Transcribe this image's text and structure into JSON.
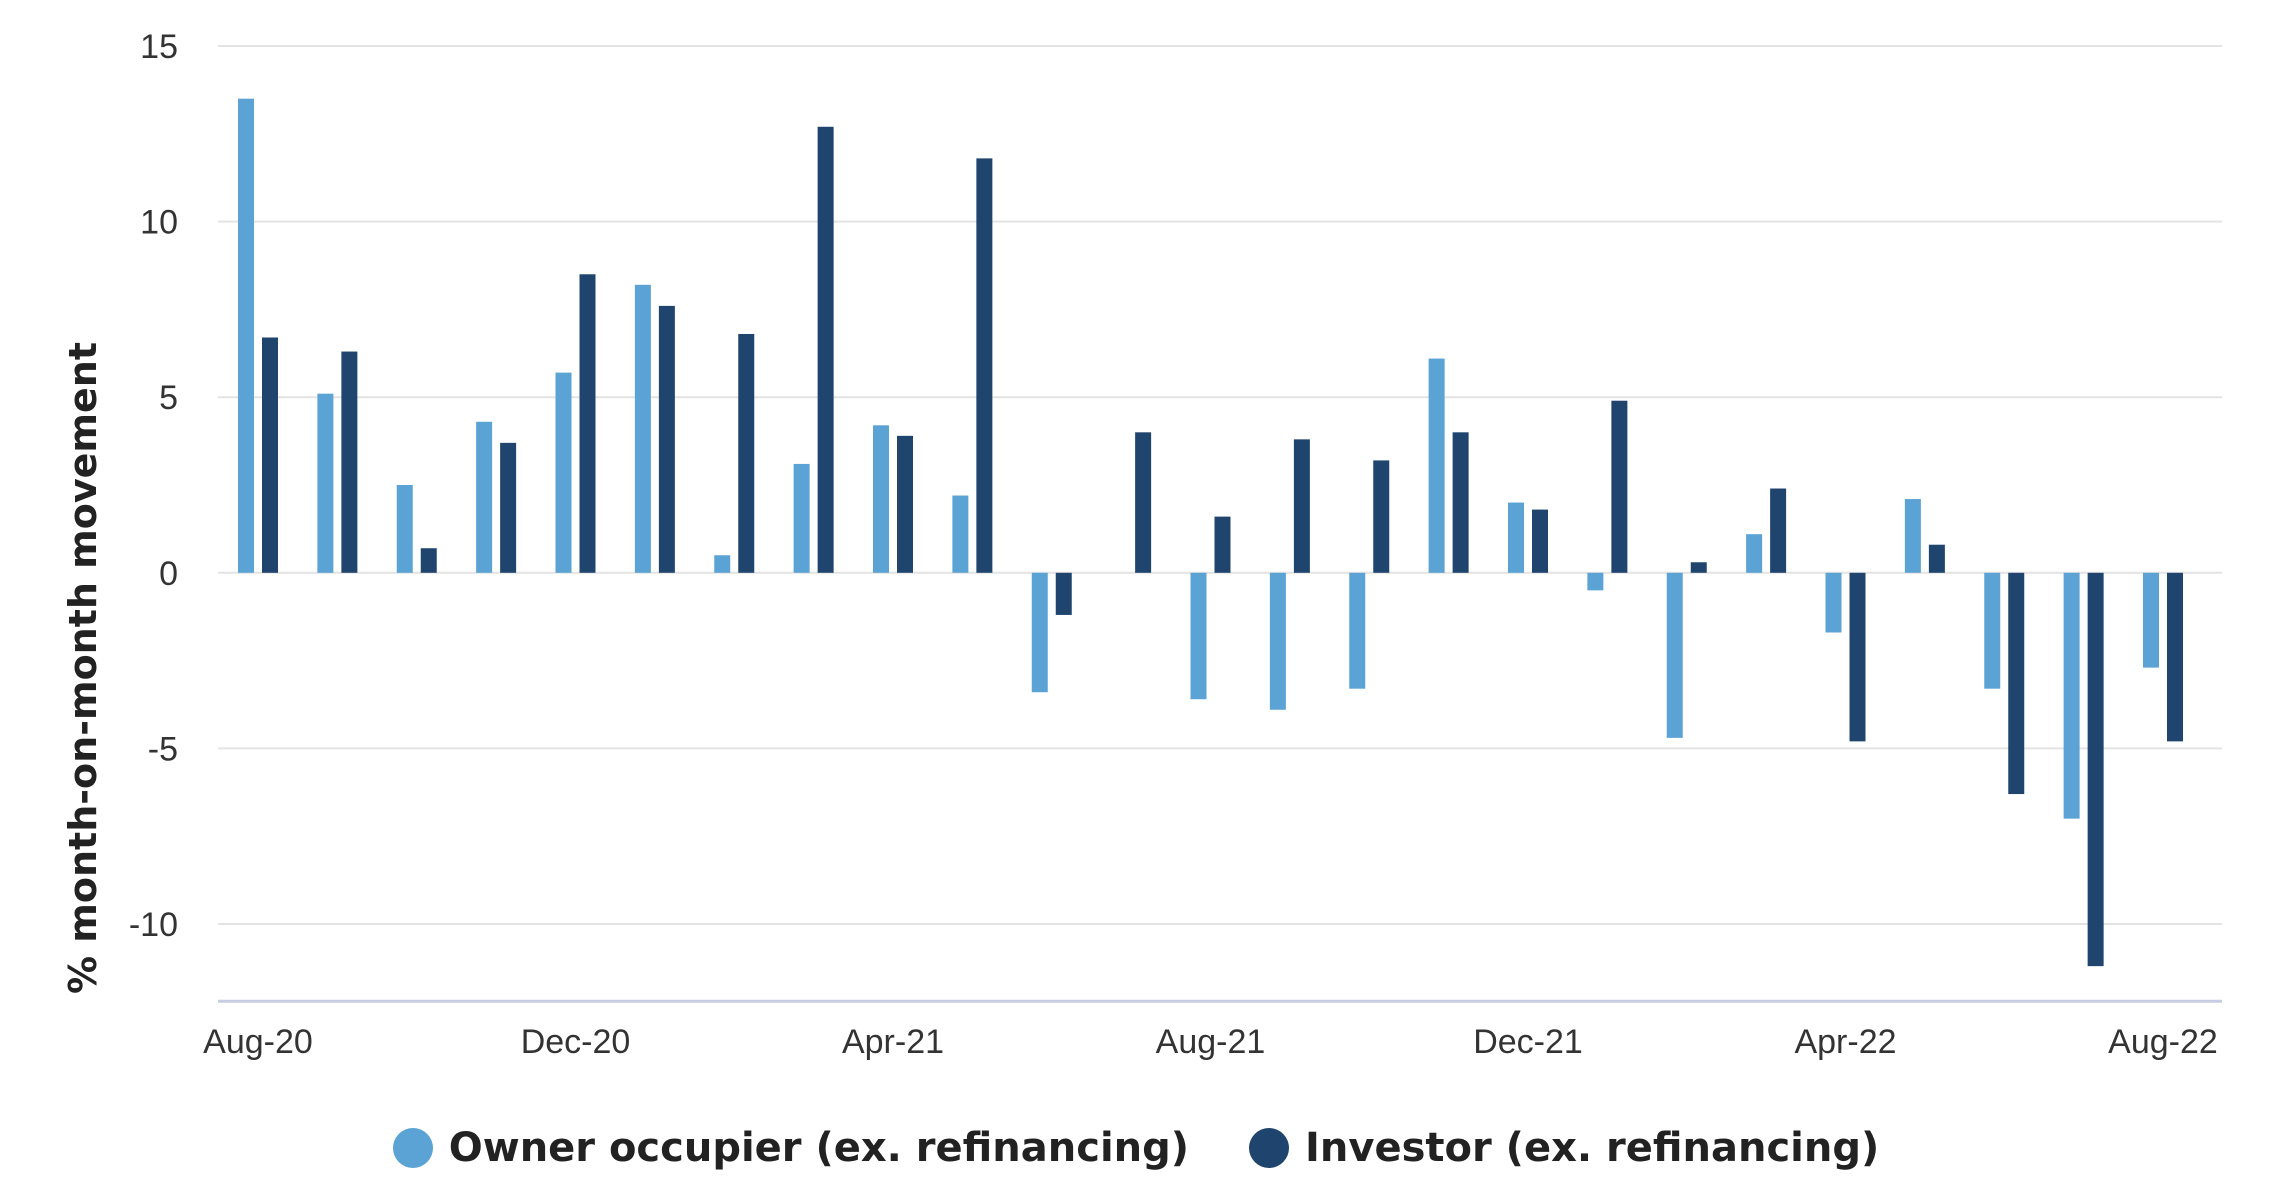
{
  "chart_data": {
    "type": "bar",
    "ylabel": "% month-on-month movement",
    "ylim": [
      -12,
      15
    ],
    "yticks": [
      15,
      10,
      5,
      0,
      -5,
      -10
    ],
    "grid": true,
    "legend_position": "bottom-center",
    "categories": [
      "Aug-20",
      "Sep-20",
      "Oct-20",
      "Nov-20",
      "Dec-20",
      "Jan-21",
      "Feb-21",
      "Mar-21",
      "Apr-21",
      "May-21",
      "Jun-21",
      "Jul-21",
      "Aug-21",
      "Sep-21",
      "Oct-21",
      "Nov-21",
      "Dec-21",
      "Jan-22",
      "Feb-22",
      "Mar-22",
      "Apr-22",
      "May-22",
      "Jun-22",
      "Jul-22",
      "Aug-22"
    ],
    "xtick_labels": [
      {
        "index": 0,
        "label": "Aug-20"
      },
      {
        "index": 4,
        "label": "Dec-20"
      },
      {
        "index": 8,
        "label": "Apr-21"
      },
      {
        "index": 12,
        "label": "Aug-21"
      },
      {
        "index": 16,
        "label": "Dec-21"
      },
      {
        "index": 20,
        "label": "Apr-22"
      },
      {
        "index": 24,
        "label": "Aug-22"
      }
    ],
    "series": [
      {
        "name": "Owner occupier (ex. refinancing)",
        "color": "#5ba3d4",
        "values": [
          13.5,
          5.1,
          2.5,
          4.3,
          5.7,
          8.2,
          0.5,
          3.1,
          4.2,
          2.2,
          -3.4,
          0.0,
          -3.6,
          -3.9,
          -3.3,
          6.1,
          2.0,
          -0.5,
          -4.7,
          1.1,
          -1.7,
          2.1,
          -3.3,
          -7.0,
          -2.7
        ]
      },
      {
        "name": "Investor (ex. refinancing)",
        "color": "#1f456e",
        "values": [
          6.7,
          6.3,
          0.7,
          3.7,
          8.5,
          7.6,
          6.8,
          12.7,
          3.9,
          11.8,
          -1.2,
          4.0,
          1.6,
          3.8,
          3.2,
          4.0,
          1.8,
          4.9,
          0.3,
          2.4,
          -4.8,
          0.8,
          -6.3,
          -11.2,
          -4.8
        ]
      }
    ]
  }
}
